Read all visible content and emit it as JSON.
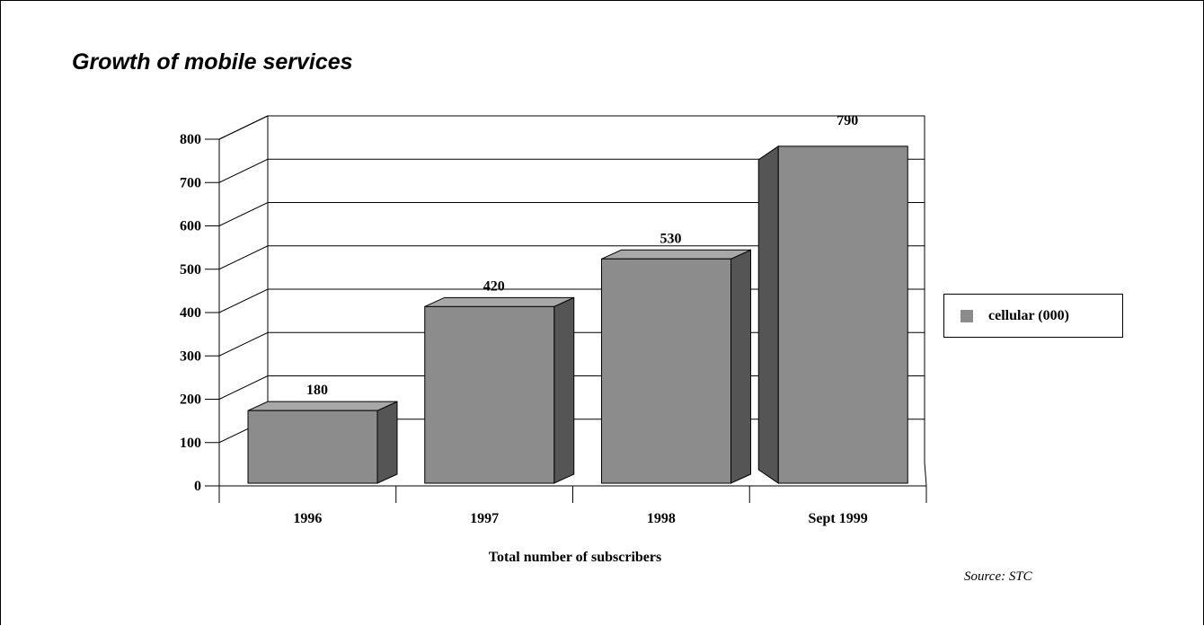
{
  "page": {
    "title": "Growth of mobile services",
    "source": "Source: STC"
  },
  "chart_data": {
    "type": "bar",
    "title": "Growth of mobile services",
    "categories": [
      "1996",
      "1997",
      "1998",
      "Sept 1999"
    ],
    "series": [
      {
        "name": "cellular (000)",
        "values": [
          180,
          420,
          530,
          790
        ]
      }
    ],
    "data_labels": [
      "180",
      "420",
      "530",
      "790"
    ],
    "xlabel": "Total number of subscribers",
    "ylabel": "",
    "ylim": [
      0,
      800
    ],
    "yticks": [
      0,
      100,
      200,
      300,
      400,
      500,
      600,
      700,
      800
    ],
    "grid": true,
    "three_d": true,
    "legend_position": "right",
    "colors": {
      "bar_front": "#8c8c8c",
      "bar_side": "#555555",
      "bar_top": "#a8a8a8",
      "grid": "#000000"
    }
  }
}
